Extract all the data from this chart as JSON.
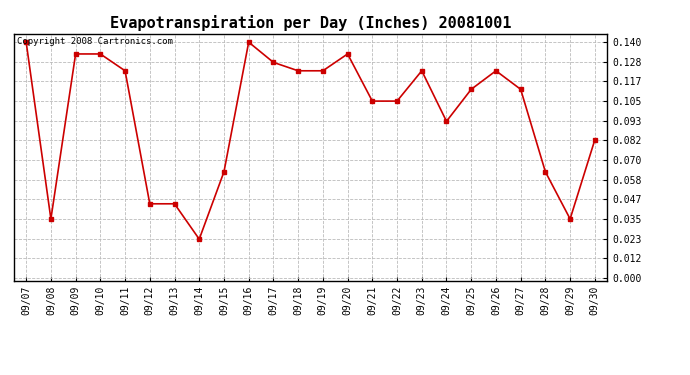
{
  "title": "Evapotranspiration per Day (Inches) 20081001",
  "copyright_text": "Copyright 2008 Cartronics.com",
  "x_labels": [
    "09/07",
    "09/08",
    "09/09",
    "09/10",
    "09/11",
    "09/12",
    "09/13",
    "09/14",
    "09/15",
    "09/16",
    "09/17",
    "09/18",
    "09/19",
    "09/20",
    "09/21",
    "09/22",
    "09/23",
    "09/24",
    "09/25",
    "09/26",
    "09/27",
    "09/28",
    "09/29",
    "09/30"
  ],
  "y_values": [
    0.14,
    0.035,
    0.133,
    0.133,
    0.123,
    0.044,
    0.044,
    0.023,
    0.063,
    0.14,
    0.128,
    0.123,
    0.123,
    0.133,
    0.105,
    0.105,
    0.123,
    0.093,
    0.112,
    0.123,
    0.112,
    0.063,
    0.035,
    0.082
  ],
  "line_color": "#cc0000",
  "marker": "s",
  "marker_size": 2.5,
  "line_width": 1.2,
  "y_ticks": [
    0.0,
    0.012,
    0.023,
    0.035,
    0.047,
    0.058,
    0.07,
    0.082,
    0.093,
    0.105,
    0.117,
    0.128,
    0.14
  ],
  "ylim": [
    0.0,
    0.14
  ],
  "background_color": "#ffffff",
  "grid_color": "#bbbbbb",
  "title_fontsize": 11,
  "tick_fontsize": 7,
  "copyright_fontsize": 6.5
}
